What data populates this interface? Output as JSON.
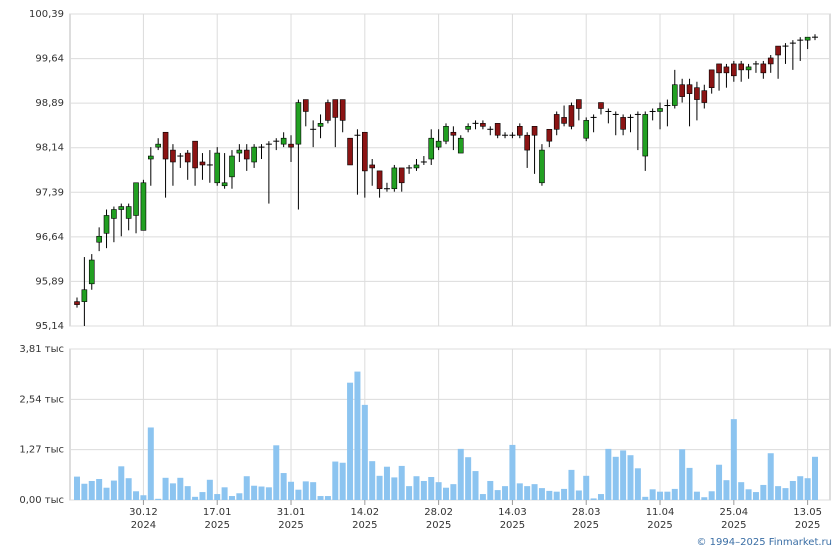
{
  "chart_data": [
    {
      "type": "candlestick",
      "ylim": [
        95.14,
        100.39
      ],
      "yticks": [
        {
          "value": 95.14,
          "label": "95,14"
        },
        {
          "value": 95.89,
          "label": "95,89"
        },
        {
          "value": 96.64,
          "label": "96,64"
        },
        {
          "value": 97.39,
          "label": "97,39"
        },
        {
          "value": 98.14,
          "label": "98,14"
        },
        {
          "value": 98.89,
          "label": "98,89"
        },
        {
          "value": 99.64,
          "label": "99,64"
        },
        {
          "value": 100.39,
          "label": "100,39"
        }
      ],
      "up_color": "#22a022",
      "down_color": "#8b1414",
      "flat_color": "#000000",
      "grid": true,
      "open": [
        95.55,
        95.55,
        95.85,
        96.55,
        96.7,
        96.95,
        97.1,
        96.95,
        97.0,
        96.75,
        97.95,
        98.15,
        98.4,
        98.1,
        98.0,
        98.05,
        98.25,
        97.9,
        97.85,
        97.55,
        97.5,
        97.65,
        98.05,
        98.1,
        97.9,
        98.15,
        98.2,
        98.25,
        98.2,
        98.2,
        98.2,
        98.95,
        98.45,
        98.5,
        98.9,
        98.95,
        98.95,
        98.3,
        98.35,
        98.4,
        97.85,
        97.75,
        97.45,
        97.45,
        97.8,
        97.8,
        97.8,
        97.9,
        97.95,
        98.15,
        98.25,
        98.4,
        98.05,
        98.45,
        98.55,
        98.55,
        98.45,
        98.55,
        98.35,
        98.35,
        98.5,
        98.35,
        98.5,
        97.55,
        98.45,
        98.7,
        98.65,
        98.85,
        98.95,
        98.3,
        98.65,
        98.9,
        98.75,
        98.7,
        98.65,
        98.65,
        98.7,
        98.0,
        98.75,
        98.75,
        98.85,
        98.85,
        99.2,
        99.2,
        99.15,
        99.1,
        99.45,
        99.55,
        99.5,
        99.55,
        99.55,
        99.45,
        99.55,
        99.55,
        99.65,
        99.85,
        99.85,
        99.9,
        99.95,
        99.95,
        100.0
      ],
      "high": [
        95.62,
        96.3,
        96.35,
        96.8,
        97.1,
        97.15,
        97.2,
        97.2,
        97.55,
        97.6,
        98.15,
        98.3,
        98.4,
        98.2,
        98.05,
        98.1,
        98.25,
        98.05,
        98.1,
        98.15,
        98.05,
        98.1,
        98.2,
        98.2,
        98.2,
        98.2,
        98.25,
        98.3,
        98.4,
        98.35,
        98.95,
        98.95,
        98.6,
        98.7,
        98.95,
        98.95,
        98.95,
        98.3,
        98.45,
        98.4,
        97.95,
        97.75,
        97.55,
        97.85,
        97.8,
        97.85,
        97.95,
        98.0,
        98.45,
        98.45,
        98.55,
        98.5,
        98.35,
        98.55,
        98.6,
        98.6,
        98.5,
        98.55,
        98.4,
        98.4,
        98.55,
        98.4,
        98.5,
        98.2,
        98.45,
        98.75,
        98.85,
        98.9,
        98.95,
        98.65,
        98.7,
        98.9,
        98.8,
        98.75,
        98.7,
        98.7,
        98.75,
        98.75,
        98.8,
        98.9,
        98.95,
        99.45,
        99.3,
        99.3,
        99.25,
        99.2,
        99.45,
        99.55,
        99.55,
        99.6,
        99.6,
        99.55,
        99.6,
        99.6,
        99.7,
        99.85,
        99.9,
        99.95,
        100.0,
        100.0,
        100.05
      ],
      "low": [
        95.45,
        95.14,
        95.75,
        96.4,
        96.45,
        96.55,
        96.65,
        96.75,
        96.7,
        96.75,
        97.5,
        98.1,
        97.3,
        97.5,
        97.8,
        97.6,
        97.5,
        97.6,
        97.55,
        97.5,
        97.45,
        97.45,
        97.9,
        97.75,
        97.8,
        97.95,
        97.2,
        98.1,
        98.15,
        97.9,
        97.1,
        98.5,
        98.15,
        98.3,
        98.55,
        98.15,
        98.4,
        97.85,
        97.35,
        97.3,
        97.5,
        97.3,
        97.4,
        97.4,
        97.4,
        97.7,
        97.75,
        97.85,
        97.85,
        98.1,
        98.2,
        98.1,
        98.05,
        98.4,
        98.45,
        98.45,
        98.35,
        98.3,
        98.3,
        98.3,
        98.3,
        97.8,
        97.7,
        97.5,
        98.15,
        98.35,
        98.5,
        98.45,
        98.6,
        98.25,
        98.4,
        98.7,
        98.55,
        98.35,
        98.35,
        98.4,
        98.1,
        97.75,
        98.6,
        98.45,
        98.5,
        98.8,
        98.9,
        98.5,
        98.6,
        98.8,
        99.05,
        99.1,
        99.15,
        99.25,
        99.25,
        99.3,
        99.4,
        99.3,
        99.4,
        99.3,
        99.55,
        99.45,
        99.6,
        99.8,
        99.95
      ],
      "close": [
        95.5,
        95.75,
        96.25,
        96.65,
        97.0,
        97.1,
        97.15,
        97.15,
        97.55,
        97.55,
        98.0,
        98.2,
        97.95,
        97.9,
        98.0,
        97.9,
        97.8,
        97.85,
        97.85,
        98.05,
        97.55,
        98.0,
        98.1,
        97.95,
        98.15,
        98.15,
        98.2,
        98.25,
        98.3,
        98.15,
        98.9,
        98.75,
        98.45,
        98.55,
        98.6,
        98.65,
        98.6,
        97.85,
        98.35,
        97.75,
        97.8,
        97.45,
        97.45,
        97.8,
        97.55,
        97.8,
        97.85,
        97.9,
        98.3,
        98.25,
        98.5,
        98.35,
        98.3,
        98.5,
        98.55,
        98.5,
        98.45,
        98.35,
        98.35,
        98.35,
        98.35,
        98.1,
        98.35,
        98.1,
        98.25,
        98.45,
        98.55,
        98.5,
        98.8,
        98.6,
        98.65,
        98.8,
        98.75,
        98.7,
        98.45,
        98.65,
        98.7,
        98.7,
        98.75,
        98.8,
        98.85,
        99.2,
        99.0,
        99.05,
        98.95,
        98.9,
        99.15,
        99.4,
        99.4,
        99.35,
        99.45,
        99.5,
        99.55,
        99.4,
        99.55,
        99.7,
        99.85,
        99.9,
        99.95,
        100.0,
        100.0
      ]
    },
    {
      "type": "bar",
      "color": "#8cc4f0",
      "grid": true,
      "ylim": [
        0,
        3.81
      ],
      "yticks": [
        {
          "value": 0,
          "label": "0,00 тыс"
        },
        {
          "value": 1.27,
          "label": "1,27 тыс"
        },
        {
          "value": 2.54,
          "label": "2,54 тыс"
        },
        {
          "value": 3.81,
          "label": "3,81 тыс"
        }
      ],
      "xticks": [
        {
          "value": 9,
          "label": [
            "30.12",
            "2024"
          ]
        },
        {
          "value": 19,
          "label": [
            "17.01",
            "2025"
          ]
        },
        {
          "value": 29,
          "label": [
            "31.01",
            "2025"
          ]
        },
        {
          "value": 39,
          "label": [
            "14.02",
            "2025"
          ]
        },
        {
          "value": 49,
          "label": [
            "28.02",
            "2025"
          ]
        },
        {
          "value": 59,
          "label": [
            "14.03",
            "2025"
          ]
        },
        {
          "value": 69,
          "label": [
            "28.03",
            "2025"
          ]
        },
        {
          "value": 79,
          "label": [
            "11.04",
            "2025"
          ]
        },
        {
          "value": 89,
          "label": [
            "25.04",
            "2025"
          ]
        },
        {
          "value": 99,
          "label": [
            "13.05",
            "2025"
          ]
        }
      ],
      "values": [
        0.59,
        0.41,
        0.48,
        0.53,
        0.31,
        0.49,
        0.85,
        0.55,
        0.22,
        0.12,
        1.83,
        0.03,
        0.56,
        0.42,
        0.56,
        0.35,
        0.08,
        0.2,
        0.51,
        0.15,
        0.32,
        0.1,
        0.17,
        0.6,
        0.36,
        0.34,
        0.32,
        1.38,
        0.68,
        0.46,
        0.26,
        0.47,
        0.45,
        0.1,
        0.1,
        0.97,
        0.94,
        2.96,
        3.24,
        2.4,
        0.98,
        0.61,
        0.84,
        0.57,
        0.86,
        0.35,
        0.6,
        0.48,
        0.58,
        0.45,
        0.31,
        0.4,
        1.29,
        1.08,
        0.73,
        0.15,
        0.48,
        0.25,
        0.35,
        1.39,
        0.42,
        0.35,
        0.4,
        0.3,
        0.23,
        0.21,
        0.28,
        0.76,
        0.24,
        0.61,
        0.04,
        0.15,
        1.29,
        1.09,
        1.25,
        1.13,
        0.8,
        0.08,
        0.27,
        0.21,
        0.21,
        0.28,
        1.28,
        0.81,
        0.21,
        0.07,
        0.22,
        0.89,
        0.5,
        2.04,
        0.45,
        0.27,
        0.2,
        0.38,
        1.18,
        0.35,
        0.3,
        0.48,
        0.6,
        0.55,
        1.09
      ]
    }
  ],
  "footer": "© 1994–2025 Finmarket.ru"
}
